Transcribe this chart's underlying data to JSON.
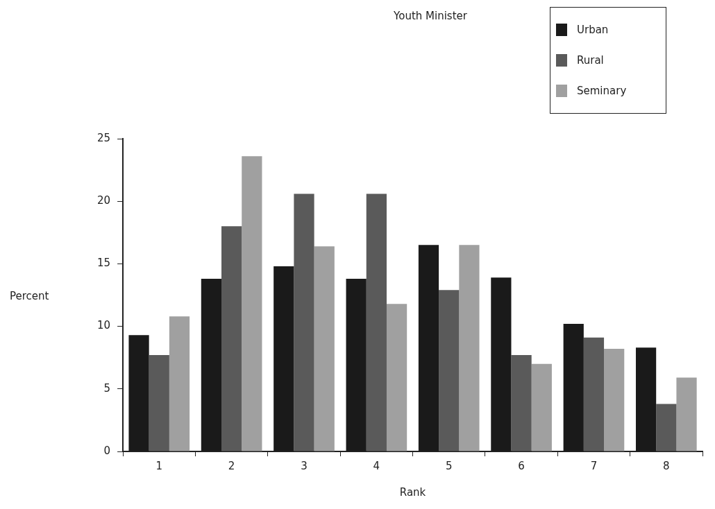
{
  "chart_data": {
    "type": "bar",
    "title": "Youth Minister",
    "xlabel": "Rank",
    "ylabel": "Percent",
    "categories": [
      "1",
      "2",
      "3",
      "4",
      "5",
      "6",
      "7",
      "8"
    ],
    "series": [
      {
        "name": "Urban",
        "color": "#1a1a1a",
        "values": [
          9.3,
          13.8,
          14.8,
          13.8,
          16.5,
          13.9,
          10.2,
          8.3
        ]
      },
      {
        "name": "Rural",
        "color": "#5a5a5a",
        "values": [
          7.7,
          18,
          20.6,
          20.6,
          12.9,
          7.7,
          9.1,
          3.8
        ]
      },
      {
        "name": "Seminary",
        "color": "#a0a0a0",
        "values": [
          10.8,
          23.6,
          16.4,
          11.8,
          16.5,
          7,
          8.2,
          5.9
        ]
      }
    ],
    "ylim": [
      0,
      25
    ],
    "yticks": [
      0,
      5,
      10,
      15,
      20,
      25
    ],
    "grid": false,
    "legend": "top right"
  }
}
